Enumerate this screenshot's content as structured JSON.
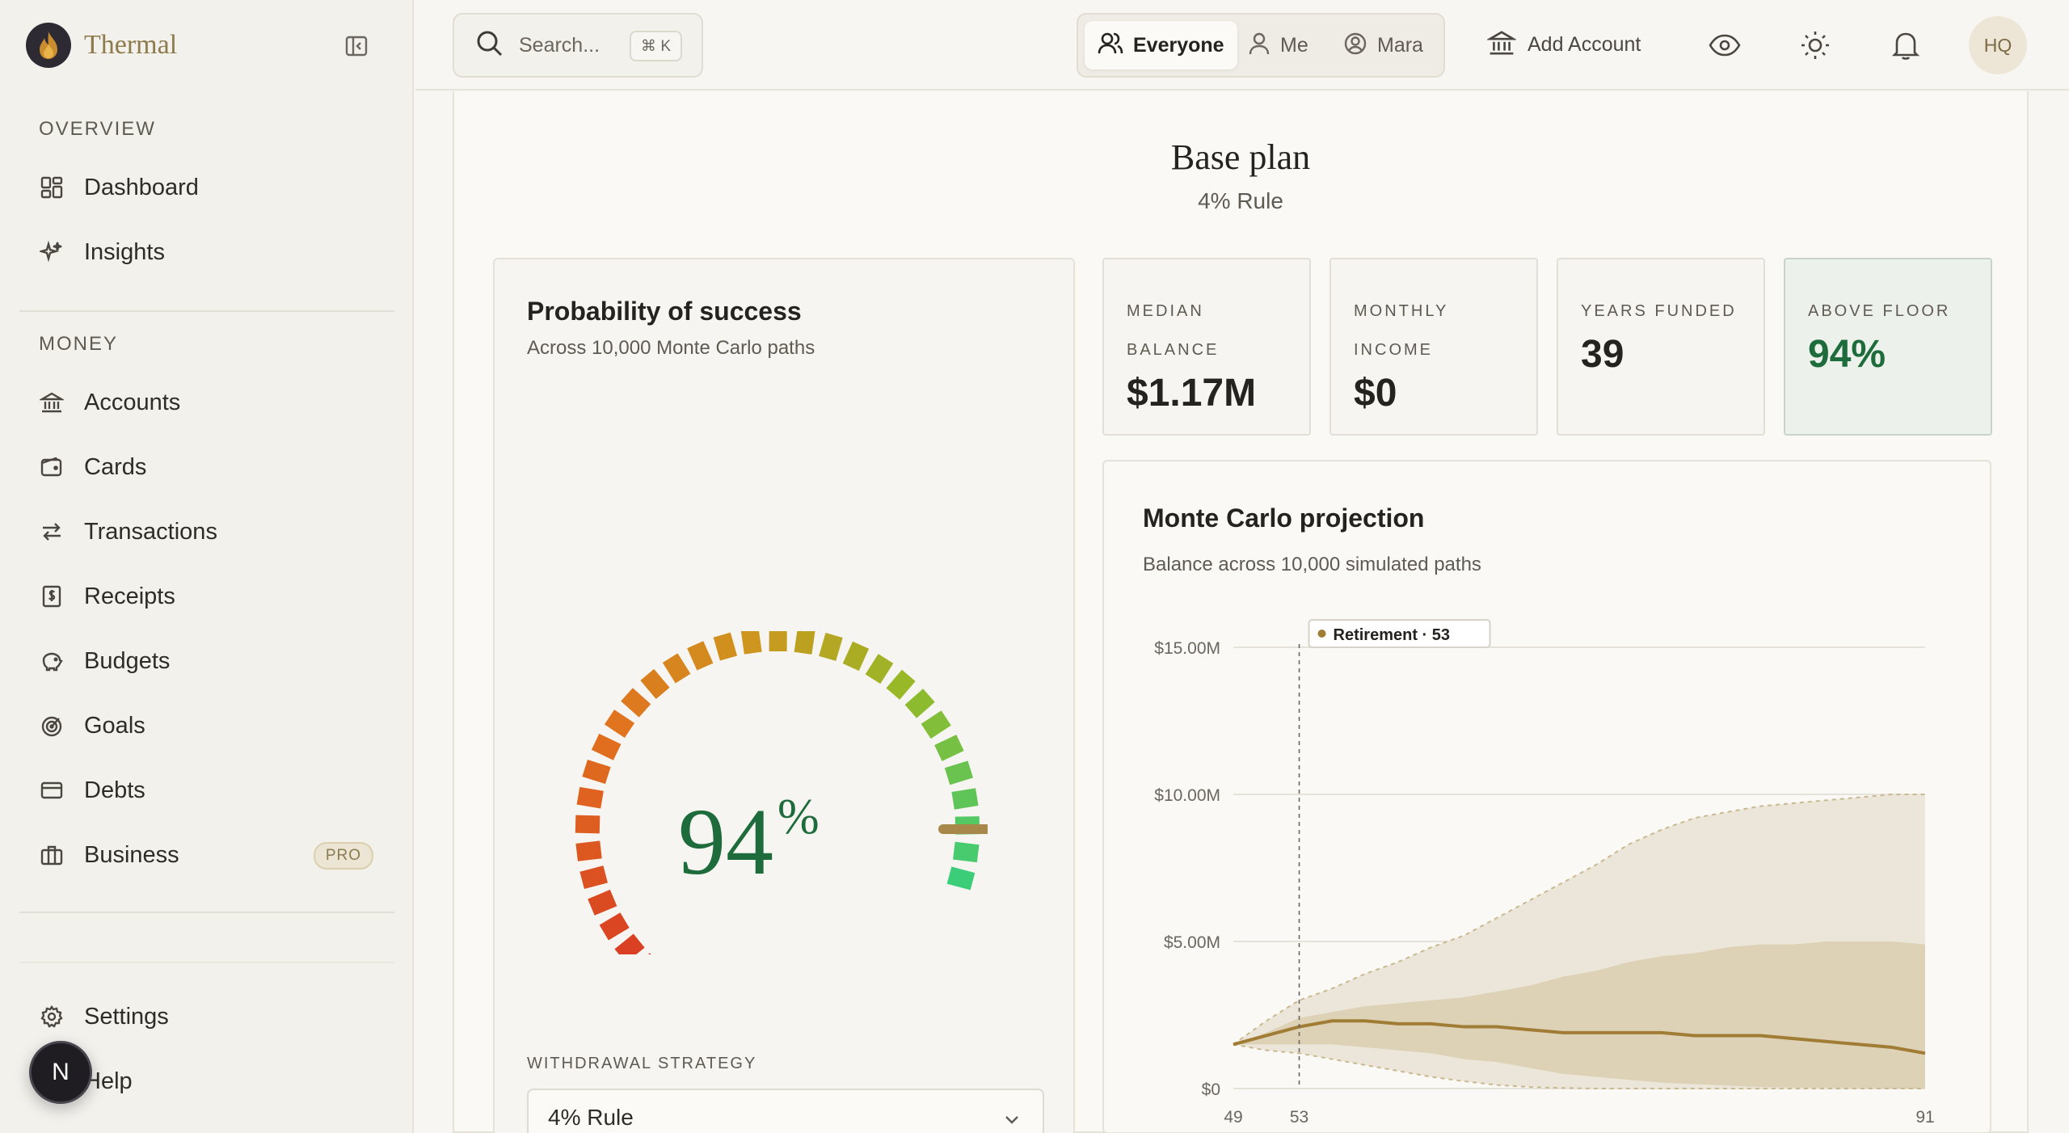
{
  "brand": {
    "name": "Thermal"
  },
  "sidebar": {
    "sections": [
      {
        "label": "OVERVIEW",
        "items": [
          {
            "label": "Dashboard",
            "icon": "dashboard-icon"
          },
          {
            "label": "Insights",
            "icon": "sparkle-icon"
          }
        ]
      },
      {
        "label": "MONEY",
        "items": [
          {
            "label": "Accounts",
            "icon": "bank-icon"
          },
          {
            "label": "Cards",
            "icon": "wallet-icon"
          },
          {
            "label": "Transactions",
            "icon": "arrows-icon"
          },
          {
            "label": "Receipts",
            "icon": "receipt-icon"
          },
          {
            "label": "Budgets",
            "icon": "piggy-icon"
          },
          {
            "label": "Goals",
            "icon": "target-icon"
          },
          {
            "label": "Debts",
            "icon": "card-icon"
          },
          {
            "label": "Business",
            "icon": "briefcase-icon",
            "badge": "PRO"
          }
        ]
      }
    ],
    "footer": [
      {
        "label": "Settings",
        "icon": "gear-icon"
      },
      {
        "label": "Help",
        "icon": "help-icon"
      }
    ],
    "help_avatar": "N"
  },
  "topbar": {
    "search_placeholder": "Search...",
    "search_shortcut": "⌘ K",
    "segments": [
      {
        "label": "Everyone",
        "active": true
      },
      {
        "label": "Me",
        "active": false
      },
      {
        "label": "Mara",
        "active": false
      }
    ],
    "add_account": "Add Account",
    "user_initials": "HQ"
  },
  "plan": {
    "title": "Base plan",
    "subtitle": "4% Rule"
  },
  "probability": {
    "title": "Probability of success",
    "subtitle": "Across 10,000 Monte Carlo paths",
    "value": "94",
    "unit": "%",
    "fraction": 0.94,
    "strategy_label": "WITHDRAWAL STRATEGY",
    "strategy_value": "4% Rule"
  },
  "stats": [
    {
      "label_lines": [
        "MEDIAN",
        "BALANCE"
      ],
      "value": "$1.17M"
    },
    {
      "label_lines": [
        "MONTHLY",
        "INCOME"
      ],
      "value": "$0"
    },
    {
      "label_lines": [
        "YEARS FUNDED"
      ],
      "value": "39"
    },
    {
      "label_lines": [
        "ABOVE FLOOR"
      ],
      "value": "94%",
      "highlight": true
    }
  ],
  "colors": {
    "accent": "#a07c35",
    "success": "#1e6b3b",
    "band_outer": "#ece6da",
    "band_inner": "#ddd2b6"
  },
  "chart_data": {
    "type": "area",
    "title": "Monte Carlo projection",
    "subtitle": "Balance across 10,000 simulated paths",
    "xlabel": "",
    "ylabel": "",
    "x_ticks": [
      49,
      53,
      91
    ],
    "y_ticks": [
      "$0",
      "$5.00M",
      "$10.00M",
      "$15.00M"
    ],
    "xlim": [
      49,
      91
    ],
    "ylim": [
      0,
      15000000
    ],
    "annotation": {
      "x": 53,
      "label": "Retirement · 53"
    },
    "x": [
      49,
      51,
      53,
      55,
      57,
      59,
      61,
      63,
      65,
      67,
      69,
      71,
      73,
      75,
      77,
      79,
      81,
      83,
      85,
      87,
      89,
      91
    ],
    "series": [
      {
        "name": "",
        "role": "p90",
        "values": [
          1.5,
          2.3,
          3.0,
          3.4,
          3.9,
          4.3,
          4.8,
          5.2,
          5.8,
          6.4,
          7.0,
          7.6,
          8.3,
          8.8,
          9.2,
          9.4,
          9.6,
          9.7,
          9.8,
          9.9,
          10.0,
          10.0
        ]
      },
      {
        "name": "",
        "role": "p75",
        "values": [
          1.5,
          1.9,
          2.4,
          2.6,
          2.8,
          2.9,
          3.0,
          3.1,
          3.3,
          3.5,
          3.8,
          4.0,
          4.3,
          4.5,
          4.6,
          4.8,
          4.9,
          4.9,
          5.0,
          5.0,
          5.0,
          4.9
        ]
      },
      {
        "name": "",
        "role": "median",
        "values": [
          1.5,
          1.8,
          2.1,
          2.3,
          2.3,
          2.2,
          2.2,
          2.1,
          2.1,
          2.0,
          1.9,
          1.9,
          1.9,
          1.9,
          1.8,
          1.8,
          1.8,
          1.7,
          1.6,
          1.5,
          1.4,
          1.2
        ]
      },
      {
        "name": "",
        "role": "p25",
        "values": [
          1.5,
          1.5,
          1.5,
          1.5,
          1.4,
          1.3,
          1.2,
          1.0,
          0.9,
          0.7,
          0.5,
          0.4,
          0.3,
          0.2,
          0.15,
          0.1,
          0.05,
          0.03,
          0.02,
          0.01,
          0.0,
          0.0
        ]
      },
      {
        "name": "",
        "role": "p10",
        "values": [
          1.5,
          1.3,
          1.2,
          1.0,
          0.8,
          0.6,
          0.4,
          0.25,
          0.12,
          0.05,
          0.02,
          0.0,
          0.0,
          0.0,
          0.0,
          0.0,
          0.0,
          0.0,
          0.0,
          0.0,
          0.0,
          0.0
        ]
      }
    ],
    "value_unit": "millions USD"
  }
}
